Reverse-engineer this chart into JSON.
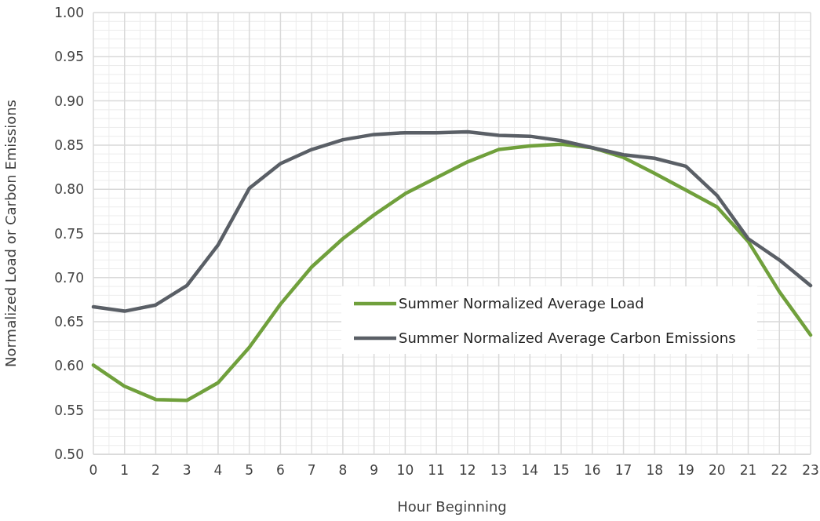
{
  "chart_data": {
    "type": "line",
    "xlabel": "Hour Beginning",
    "ylabel": "Normalized Load or Carbon Emissions",
    "x": [
      0,
      1,
      2,
      3,
      4,
      5,
      6,
      7,
      8,
      9,
      10,
      11,
      12,
      13,
      14,
      15,
      16,
      17,
      18,
      19,
      20,
      21,
      22,
      23
    ],
    "series": [
      {
        "name": "Summer Normalized Average Load",
        "color": "#70a03c",
        "values": [
          0.601,
          0.577,
          0.562,
          0.561,
          0.581,
          0.621,
          0.67,
          0.712,
          0.744,
          0.771,
          0.795,
          0.813,
          0.831,
          0.845,
          0.849,
          0.851,
          0.847,
          0.836,
          0.818,
          0.799,
          0.78,
          0.741,
          0.684,
          0.635
        ]
      },
      {
        "name": "Summer Normalized Average Carbon Emissions",
        "color": "#5a5f66",
        "values": [
          0.667,
          0.662,
          0.669,
          0.691,
          0.737,
          0.801,
          0.829,
          0.845,
          0.856,
          0.862,
          0.864,
          0.864,
          0.865,
          0.861,
          0.86,
          0.855,
          0.847,
          0.839,
          0.835,
          0.826,
          0.793,
          0.744,
          0.72,
          0.691
        ]
      }
    ],
    "xlim": [
      0,
      23
    ],
    "xticks": [
      0,
      1,
      2,
      3,
      4,
      5,
      6,
      7,
      8,
      9,
      10,
      11,
      12,
      13,
      14,
      15,
      16,
      17,
      18,
      19,
      20,
      21,
      22,
      23
    ],
    "ylim": [
      0.5,
      1.0
    ],
    "yticks": [
      {
        "value": 0.5,
        "label": "0.50"
      },
      {
        "value": 0.55,
        "label": "0.55"
      },
      {
        "value": 0.6,
        "label": "0.60"
      },
      {
        "value": 0.65,
        "label": "0.65"
      },
      {
        "value": 0.7,
        "label": "0.70"
      },
      {
        "value": 0.75,
        "label": "0.75"
      },
      {
        "value": 0.8,
        "label": "0.80"
      },
      {
        "value": 0.85,
        "label": "0.85"
      },
      {
        "value": 0.9,
        "label": "0.90"
      },
      {
        "value": 0.95,
        "label": "0.95"
      },
      {
        "value": 1.0,
        "label": "1.00"
      }
    ],
    "grid": true,
    "legend": "right",
    "marker": "none",
    "line_style": "solid"
  }
}
